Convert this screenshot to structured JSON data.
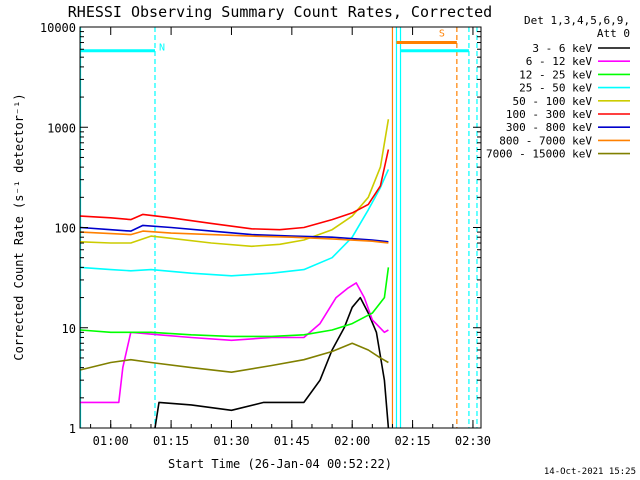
{
  "chart_data": {
    "type": "line",
    "title": "RHESSI Observing Summary Count Rates, Corrected",
    "xlabel": "Start Time (26-Jan-04 00:52:22)",
    "ylabel": "Corrected Count Rate (s⁻¹ detector⁻¹)",
    "yscale": "log",
    "ylim": [
      1,
      10000
    ],
    "xlim": [
      "00:52:22",
      "02:32:00"
    ],
    "x_ticks": [
      "01:00",
      "01:15",
      "01:30",
      "01:45",
      "02:00",
      "02:15",
      "02:30"
    ],
    "y_ticks": [
      "1",
      "10",
      "100",
      "1000",
      "10000"
    ],
    "legend": {
      "position": "top-right",
      "header": [
        "Det 1,3,4,5,6,9,",
        "Att 0"
      ]
    },
    "footer_timestamp": "14-Oct-2021 15:25",
    "flags": [
      {
        "label": "N",
        "color": "#00ffff",
        "start": "00:52:22",
        "end": "01:11:00",
        "level": 5800
      },
      {
        "label": "",
        "color": "#00ffff",
        "start": "02:12:00",
        "end": "02:29:00",
        "level": 5800
      },
      {
        "label": "S",
        "color": "#ff8000",
        "start": "02:11:00",
        "end": "02:26:00",
        "level": 7000
      }
    ],
    "markers": [
      {
        "time": "00:52:30",
        "color": "#00ffff",
        "style": "solid"
      },
      {
        "time": "01:11:00",
        "color": "#00ffff",
        "style": "dashed"
      },
      {
        "time": "02:10:00",
        "color": "#ff8000",
        "style": "solid"
      },
      {
        "time": "02:11:00",
        "color": "#00ffff",
        "style": "solid"
      },
      {
        "time": "02:12:00",
        "color": "#00ffff",
        "style": "solid"
      },
      {
        "time": "02:26:00",
        "color": "#ff8000",
        "style": "dashed"
      },
      {
        "time": "02:29:00",
        "color": "#00ffff",
        "style": "dashed"
      },
      {
        "time": "02:31:00",
        "color": "#00ffff",
        "style": "dashed"
      }
    ],
    "series": [
      {
        "name": "3 - 6 keV",
        "color": "#000000",
        "points": [
          [
            "01:11",
            1
          ],
          [
            "01:12",
            1.8
          ],
          [
            "01:20",
            1.7
          ],
          [
            "01:30",
            1.5
          ],
          [
            "01:38",
            1.8
          ],
          [
            "01:48",
            1.8
          ],
          [
            "01:52",
            3
          ],
          [
            "01:55",
            6
          ],
          [
            "01:58",
            10
          ],
          [
            "02:00",
            16
          ],
          [
            "02:02",
            20
          ],
          [
            "02:04",
            14
          ],
          [
            "02:06",
            9
          ],
          [
            "02:08",
            3
          ],
          [
            "02:09",
            1
          ]
        ]
      },
      {
        "name": "6 - 12 keV",
        "color": "#ff00ff",
        "points": [
          [
            "00:52:30",
            1.8
          ],
          [
            "01:00",
            1.8
          ],
          [
            "01:02",
            1.8
          ],
          [
            "01:03",
            4
          ],
          [
            "01:05",
            9
          ],
          [
            "01:12",
            8.5
          ],
          [
            "01:20",
            8
          ],
          [
            "01:30",
            7.5
          ],
          [
            "01:40",
            8
          ],
          [
            "01:48",
            8
          ],
          [
            "01:52",
            11
          ],
          [
            "01:56",
            20
          ],
          [
            "01:59",
            25
          ],
          [
            "02:01",
            28
          ],
          [
            "02:03",
            20
          ],
          [
            "02:05",
            12
          ],
          [
            "02:08",
            9
          ],
          [
            "02:09",
            9.5
          ]
        ]
      },
      {
        "name": "12 - 25 keV",
        "color": "#00ff00",
        "points": [
          [
            "00:52:30",
            9.5
          ],
          [
            "01:00",
            9
          ],
          [
            "01:10",
            9
          ],
          [
            "01:20",
            8.5
          ],
          [
            "01:30",
            8.2
          ],
          [
            "01:40",
            8.2
          ],
          [
            "01:48",
            8.5
          ],
          [
            "01:55",
            9.5
          ],
          [
            "02:00",
            11
          ],
          [
            "02:05",
            14
          ],
          [
            "02:08",
            20
          ],
          [
            "02:09",
            40
          ]
        ]
      },
      {
        "name": "25 - 50 keV",
        "color": "#00ffff",
        "points": [
          [
            "00:52:30",
            40
          ],
          [
            "01:00",
            38
          ],
          [
            "01:05",
            37
          ],
          [
            "01:10",
            38
          ],
          [
            "01:20",
            35
          ],
          [
            "01:30",
            33
          ],
          [
            "01:40",
            35
          ],
          [
            "01:48",
            38
          ],
          [
            "01:55",
            50
          ],
          [
            "02:00",
            80
          ],
          [
            "02:04",
            150
          ],
          [
            "02:07",
            250
          ],
          [
            "02:09",
            380
          ]
        ]
      },
      {
        "name": "50 - 100 keV",
        "color": "#cccc00",
        "points": [
          [
            "00:52:30",
            72
          ],
          [
            "01:00",
            70
          ],
          [
            "01:05",
            70
          ],
          [
            "01:10",
            82
          ],
          [
            "01:15",
            78
          ],
          [
            "01:25",
            70
          ],
          [
            "01:35",
            65
          ],
          [
            "01:42",
            68
          ],
          [
            "01:48",
            75
          ],
          [
            "01:55",
            95
          ],
          [
            "02:00",
            130
          ],
          [
            "02:04",
            200
          ],
          [
            "02:07",
            400
          ],
          [
            "02:09",
            1200
          ]
        ]
      },
      {
        "name": "100 - 300 keV",
        "color": "#ff0000",
        "points": [
          [
            "00:52:30",
            130
          ],
          [
            "01:00",
            125
          ],
          [
            "01:05",
            120
          ],
          [
            "01:08",
            135
          ],
          [
            "01:15",
            125
          ],
          [
            "01:25",
            110
          ],
          [
            "01:35",
            97
          ],
          [
            "01:42",
            95
          ],
          [
            "01:48",
            100
          ],
          [
            "01:55",
            120
          ],
          [
            "02:00",
            140
          ],
          [
            "02:04",
            170
          ],
          [
            "02:07",
            260
          ],
          [
            "02:09",
            600
          ]
        ]
      },
      {
        "name": "300 - 800 keV",
        "color": "#0000cc",
        "points": [
          [
            "00:52:30",
            100
          ],
          [
            "01:00",
            95
          ],
          [
            "01:05",
            92
          ],
          [
            "01:08",
            105
          ],
          [
            "01:15",
            100
          ],
          [
            "01:25",
            92
          ],
          [
            "01:35",
            85
          ],
          [
            "01:45",
            82
          ],
          [
            "01:55",
            80
          ],
          [
            "02:05",
            75
          ],
          [
            "02:09",
            72
          ]
        ]
      },
      {
        "name": "800 - 7000 keV",
        "color": "#ff8000",
        "points": [
          [
            "00:52:30",
            90
          ],
          [
            "01:00",
            87
          ],
          [
            "01:05",
            85
          ],
          [
            "01:08",
            92
          ],
          [
            "01:15",
            88
          ],
          [
            "01:25",
            85
          ],
          [
            "01:35",
            82
          ],
          [
            "01:45",
            80
          ],
          [
            "01:55",
            77
          ],
          [
            "02:05",
            73
          ],
          [
            "02:09",
            70
          ]
        ]
      },
      {
        "name": "7000 - 15000 keV",
        "color": "#808000",
        "points": [
          [
            "00:52:30",
            3.8
          ],
          [
            "01:00",
            4.5
          ],
          [
            "01:05",
            4.8
          ],
          [
            "01:10",
            4.5
          ],
          [
            "01:20",
            4
          ],
          [
            "01:30",
            3.6
          ],
          [
            "01:40",
            4.2
          ],
          [
            "01:48",
            4.8
          ],
          [
            "01:55",
            5.8
          ],
          [
            "02:00",
            7
          ],
          [
            "02:04",
            6
          ],
          [
            "02:07",
            5
          ],
          [
            "02:09",
            4.5
          ]
        ]
      }
    ]
  }
}
